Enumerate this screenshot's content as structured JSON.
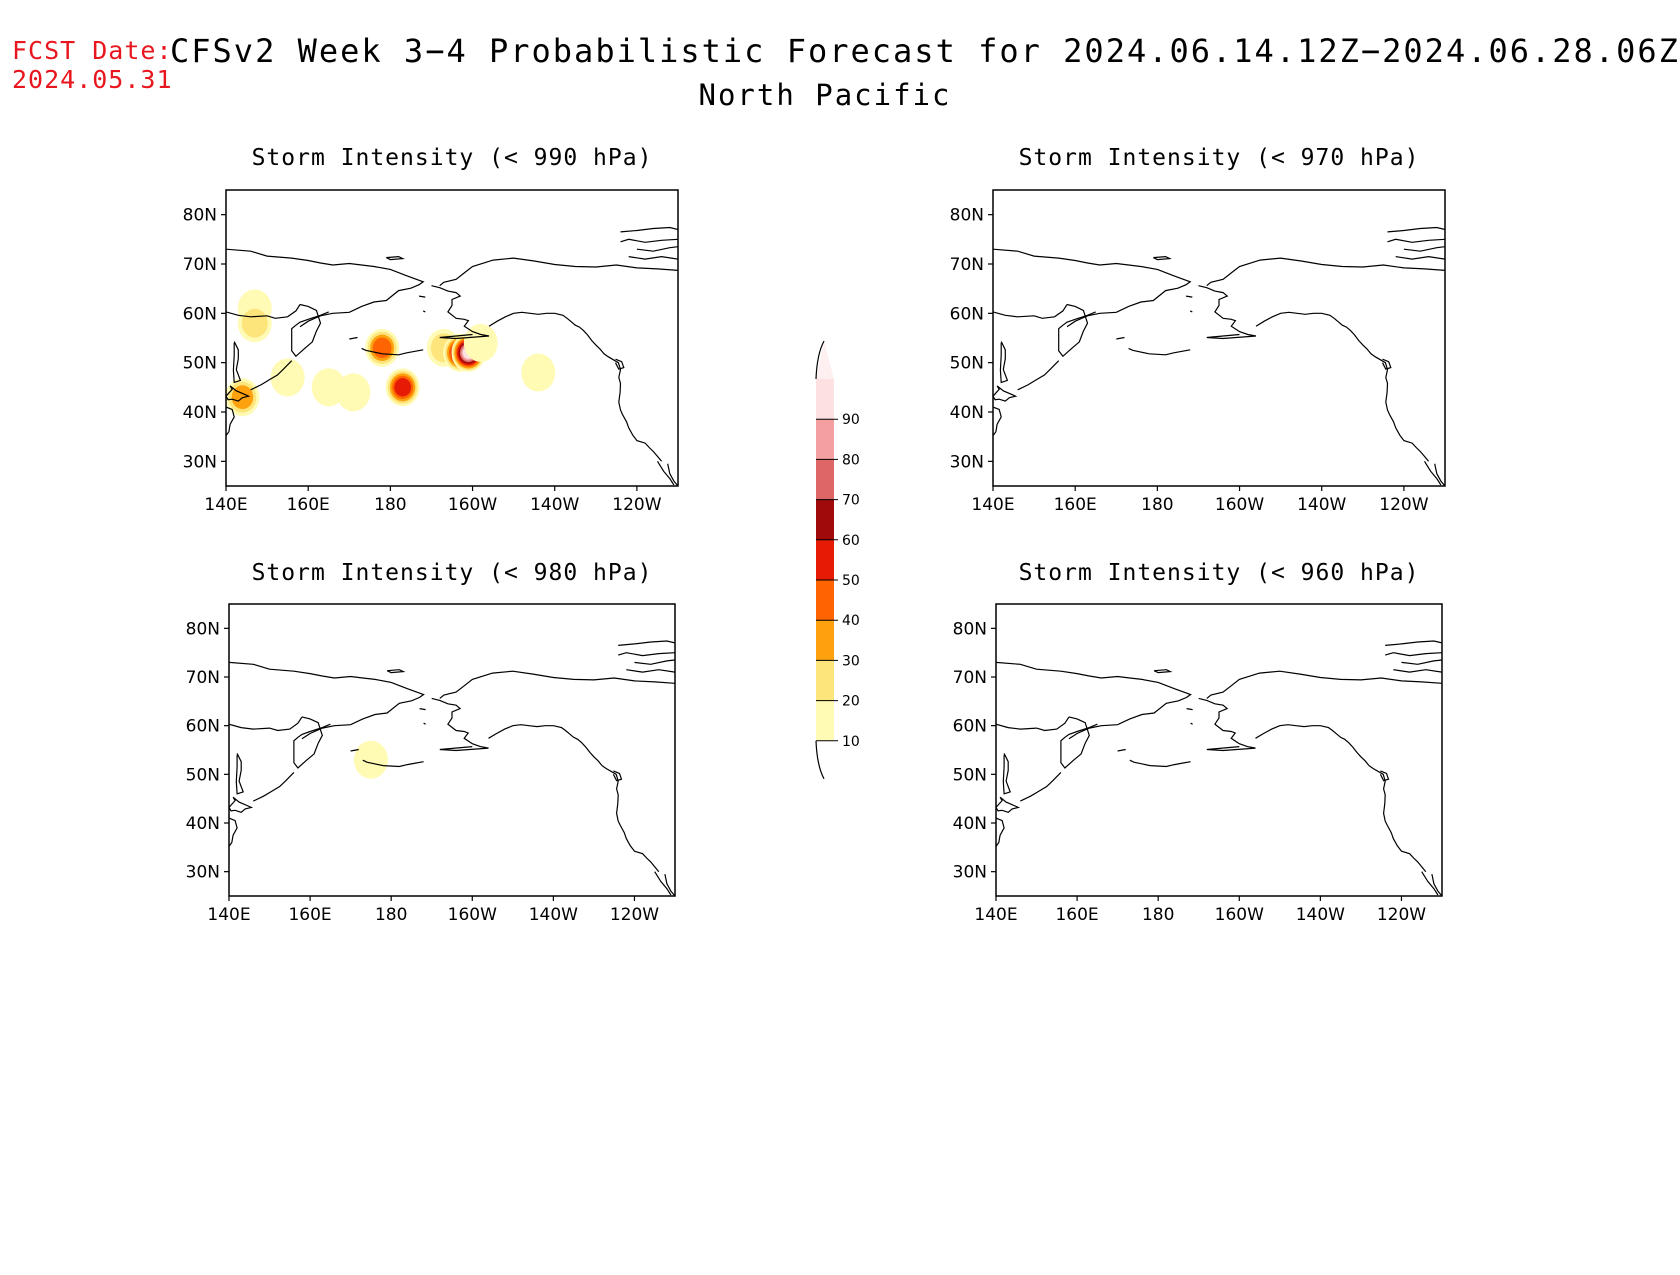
{
  "header": {
    "fcst_label": "FCST Date:",
    "fcst_date": "2024.05.31",
    "title": "CFSv2 Week 3−4 Probabilistic Forecast for 2024.06.14.12Z−2024.06.28.06Z",
    "subtitle": "North Pacific"
  },
  "panels": [
    {
      "title": "Storm Intensity (< 990 hPa)",
      "threshold_hpa": 990,
      "has_probability": true
    },
    {
      "title": "Storm Intensity (< 970 hPa)",
      "threshold_hpa": 970,
      "has_probability": false
    },
    {
      "title": "Storm Intensity (< 980 hPa)",
      "threshold_hpa": 980,
      "has_probability": true
    },
    {
      "title": "Storm Intensity (< 960 hPa)",
      "threshold_hpa": 960,
      "has_probability": false
    }
  ],
  "axes": {
    "lat_labels": [
      "80N",
      "70N",
      "60N",
      "50N",
      "40N",
      "30N"
    ],
    "lat_values": [
      80,
      70,
      60,
      50,
      40,
      30
    ],
    "lon_labels": [
      "140E",
      "160E",
      "180",
      "160W",
      "140W",
      "120W"
    ],
    "lon_values": [
      140,
      160,
      180,
      200,
      220,
      240
    ],
    "lon_range": [
      140,
      250
    ],
    "lat_range": [
      25,
      85
    ]
  },
  "colorbar": {
    "levels": [
      "10",
      "20",
      "30",
      "40",
      "50",
      "60",
      "70",
      "80",
      "90"
    ],
    "colors": [
      "#fffab4",
      "#fde57c",
      "#fda10e",
      "#fe6402",
      "#e51b06",
      "#a00a0a",
      "#df6666",
      "#f4a0a0",
      "#fde0e2"
    ]
  },
  "blobs_990": [
    {
      "lon": 147,
      "lat": 61,
      "prob": 15
    },
    {
      "lon": 147,
      "lat": 58,
      "prob": 25
    },
    {
      "lon": 144,
      "lat": 43,
      "prob": 35
    },
    {
      "lon": 155,
      "lat": 47,
      "prob": 15
    },
    {
      "lon": 165,
      "lat": 45,
      "prob": 15
    },
    {
      "lon": 171,
      "lat": 44,
      "prob": 10
    },
    {
      "lon": 178,
      "lat": 53,
      "prob": 45
    },
    {
      "lon": 183,
      "lat": 45,
      "prob": 55
    },
    {
      "lon": 193,
      "lat": 53,
      "prob": 25
    },
    {
      "lon": 197,
      "lat": 52,
      "prob": 65
    },
    {
      "lon": 199,
      "lat": 52,
      "prob": 90
    },
    {
      "lon": 202,
      "lat": 54,
      "prob": 15
    },
    {
      "lon": 216,
      "lat": 48,
      "prob": 15
    }
  ],
  "blobs_980": [
    {
      "lon": 175,
      "lat": 53,
      "prob": 15
    }
  ]
}
